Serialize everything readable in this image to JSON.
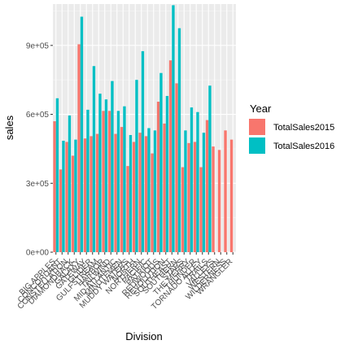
{
  "chart_data": {
    "type": "bar",
    "title": "",
    "xlabel": "Division",
    "ylabel": "sales",
    "ylim": [
      0,
      1080000
    ],
    "y_ticks": [
      0,
      300000,
      600000,
      900000
    ],
    "y_tick_labels": [
      "0e+00",
      "3e+05",
      "6e+05",
      "9e+05"
    ],
    "grid": true,
    "legend": {
      "title": "Year",
      "position": "right"
    },
    "categories": [
      "BIG APPLES",
      "CONCORDANT",
      "CONSTELLATION",
      "DIAMONDBACK",
      "GALAXY",
      "GATEWAY",
      "GLIDER",
      "GULFSTREAM",
      "HARBOR",
      "TAILWIND",
      "MID-ATLANTIC",
      "MINUTEMEN",
      "MUDDY WATERS",
      "NORTH",
      "NORTHERN",
      "PACIFIC",
      "PATRIOT",
      "REDWOODS",
      "REVOLUTION",
      "SOUTHEAST",
      "SOUTHERN",
      "STARS",
      "THE MERRY",
      "THUNDER",
      "TORNADO ALLEY",
      "TRAILS",
      "VALLEYS",
      "WESTERN",
      "WILDERNESS",
      "WRANGLER"
    ],
    "series": [
      {
        "name": "TotalSales2015",
        "color": "#F8766D",
        "values": [
          570000,
          360000,
          480000,
          420000,
          905000,
          495000,
          505000,
          515000,
          615000,
          615000,
          515000,
          545000,
          375000,
          480000,
          520000,
          505000,
          430000,
          655000,
          560000,
          835000,
          735000,
          370000,
          475000,
          480000,
          370000,
          575000,
          460000,
          445000,
          530000,
          490000
        ]
      },
      {
        "name": "TotalSales2016",
        "color": "#00BFC4",
        "values": [
          670000,
          485000,
          595000,
          490000,
          1025000,
          620000,
          810000,
          690000,
          665000,
          745000,
          615000,
          635000,
          510000,
          750000,
          875000,
          540000,
          530000,
          780000,
          680000,
          1075000,
          975000,
          530000,
          630000,
          610000,
          520000,
          725000,
          0,
          0,
          0,
          0
        ]
      }
    ]
  }
}
